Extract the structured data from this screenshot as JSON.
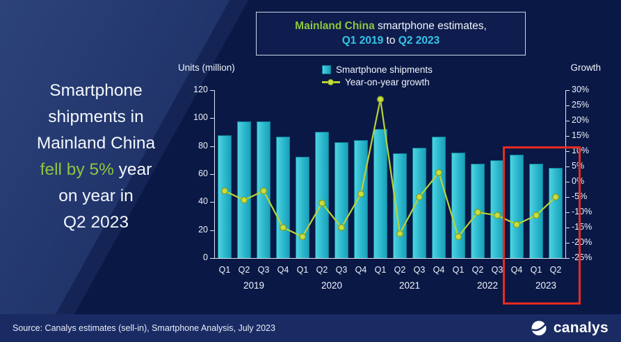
{
  "title_box": {
    "line1": [
      {
        "t": "Mainland China",
        "c": "green-bold"
      },
      {
        "t": " smartphone estimates,"
      }
    ],
    "line2": [
      {
        "t": "Q1 2019",
        "c": "cyan-bold"
      },
      {
        "t": " to "
      },
      {
        "t": "Q2 2023",
        "c": "cyan-bold"
      }
    ]
  },
  "headline": {
    "lines": [
      [
        {
          "t": "Smartphone"
        }
      ],
      [
        {
          "t": "shipments in"
        }
      ],
      [
        {
          "t": "Mainland China"
        }
      ],
      [
        {
          "t": "fell by 5%",
          "c": "green"
        },
        {
          "t": " year"
        }
      ],
      [
        {
          "t": "on year in"
        }
      ],
      [
        {
          "t": "Q2 2023"
        }
      ]
    ]
  },
  "chart_data": {
    "type": "bar",
    "title": "Mainland China smartphone estimates, Q1 2019 to Q2 2023",
    "left_axis_title": "Units (million)",
    "right_axis_title": "Growth",
    "legend": [
      "Smartphone shipments",
      "Year-on-year growth"
    ],
    "legend_position": "top",
    "grid": false,
    "categories": [
      "Q1 2019",
      "Q2 2019",
      "Q3 2019",
      "Q4 2019",
      "Q1 2020",
      "Q2 2020",
      "Q3 2020",
      "Q4 2020",
      "Q1 2021",
      "Q2 2021",
      "Q3 2021",
      "Q4 2021",
      "Q1 2022",
      "Q2 2022",
      "Q3 2022",
      "Q4 2022",
      "Q1 2023",
      "Q2 2023"
    ],
    "quarters": [
      "Q1",
      "Q2",
      "Q3",
      "Q4",
      "Q1",
      "Q2",
      "Q3",
      "Q4",
      "Q1",
      "Q2",
      "Q3",
      "Q4",
      "Q1",
      "Q2",
      "Q3",
      "Q4",
      "Q1",
      "Q2"
    ],
    "year_groups": [
      {
        "label": "2019",
        "start": 0,
        "end": 3
      },
      {
        "label": "2020",
        "start": 4,
        "end": 7
      },
      {
        "label": "2021",
        "start": 8,
        "end": 11
      },
      {
        "label": "2022",
        "start": 12,
        "end": 15
      },
      {
        "label": "2023",
        "start": 16,
        "end": 17
      }
    ],
    "series": [
      {
        "name": "Smartphone shipments",
        "type": "bar",
        "axis": "left",
        "values": [
          88.0,
          97.6,
          97.8,
          86.8,
          72.6,
          90.4,
          83.0,
          84.2,
          92.4,
          74.9,
          78.9,
          86.6,
          75.6,
          67.4,
          70.0,
          73.9,
          67.6,
          64.3
        ]
      },
      {
        "name": "Year-on-year growth",
        "type": "line",
        "axis": "right",
        "values": [
          -3,
          -6,
          -3,
          -15,
          -18,
          -7,
          -15,
          -4,
          27,
          -17,
          -5,
          3,
          -18,
          -10,
          -11,
          -14,
          -11,
          -5
        ]
      }
    ],
    "ylim_left": [
      0,
      120
    ],
    "ylim_right": [
      -25,
      30
    ],
    "left_ticks": [
      120,
      100,
      80,
      60,
      40,
      20,
      0
    ],
    "right_ticks": [
      30,
      25,
      20,
      15,
      10,
      5,
      0,
      -5,
      -10,
      -15,
      -20,
      -25
    ],
    "highlight": {
      "start": 15,
      "end": 17,
      "note": "red box around most recent three quarters"
    }
  },
  "footer": {
    "source": "Source: Canalys estimates (sell-in), Smartphone Analysis, July 2023",
    "logo_text": "canalys"
  },
  "colors": {
    "background": "#0a1846",
    "bar": "#28b4ca",
    "line": "#b8d435",
    "green_text": "#8dc63f",
    "cyan_text": "#35c4ea",
    "highlight_red": "#ea2a1e"
  }
}
